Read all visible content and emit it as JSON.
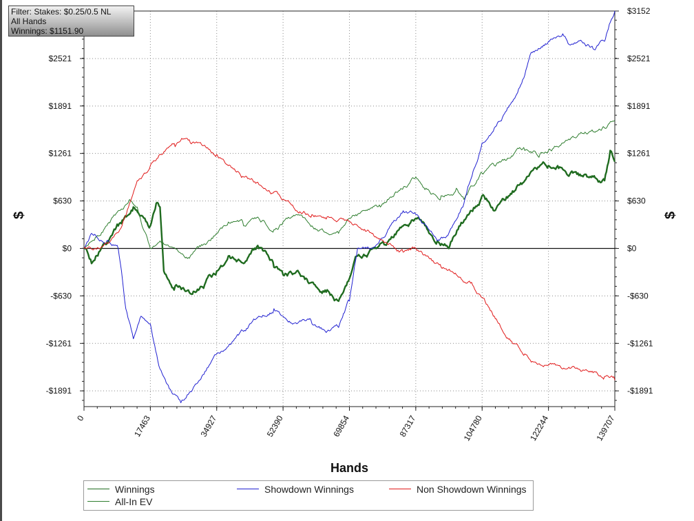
{
  "filter_box": {
    "lines": [
      "Filter: Stakes: $0.25/0.5 NL",
      "All Hands",
      "Winnings: $1151.90"
    ]
  },
  "chart_data": {
    "type": "line",
    "xlabel": "Hands",
    "ylabel": "$",
    "xlim": [
      0,
      139707
    ],
    "ylim": [
      -2100,
      3152
    ],
    "x_ticks": [
      0,
      17463,
      34927,
      52390,
      69854,
      87317,
      104780,
      122244,
      139707
    ],
    "y_ticks": [
      3152,
      2521,
      1891,
      1261,
      630,
      0,
      -630,
      -1261,
      -1891
    ],
    "y_tick_labels": [
      "$3152",
      "$2521",
      "$1891",
      "$1261",
      "$630",
      "$0",
      "-$630",
      "-$1261",
      "-$1891"
    ],
    "grid": true,
    "legend_position": "bottom",
    "series": [
      {
        "name": "Winnings",
        "color": "#1f6b1f",
        "style": "thick",
        "x": [
          0,
          2000,
          5000,
          9000,
          13000,
          16000,
          17463,
          19000,
          20000,
          21000,
          24000,
          28000,
          32000,
          34927,
          38000,
          42000,
          46000,
          50000,
          52390,
          56000,
          60000,
          64000,
          67000,
          69854,
          72000,
          75000,
          79000,
          84000,
          87317,
          90000,
          93000,
          96000,
          99000,
          102000,
          104780,
          108000,
          112000,
          116000,
          120000,
          122244,
          126000,
          130000,
          134000,
          137000,
          138500,
          139707
        ],
        "values": [
          0,
          -200,
          50,
          300,
          550,
          400,
          300,
          600,
          550,
          -300,
          -500,
          -600,
          -450,
          -300,
          -100,
          -200,
          0,
          -250,
          -350,
          -300,
          -450,
          -550,
          -700,
          -400,
          -100,
          -50,
          50,
          300,
          400,
          300,
          100,
          0,
          300,
          500,
          700,
          500,
          700,
          900,
          1100,
          1100,
          1050,
          1000,
          950,
          900,
          1300,
          1152
        ]
      },
      {
        "name": "All-In EV",
        "color": "#2e7d2e",
        "style": "thin",
        "x": [
          0,
          3000,
          6000,
          9000,
          12000,
          14000,
          17463,
          20000,
          24000,
          28000,
          32000,
          34927,
          38000,
          42000,
          46000,
          50000,
          52390,
          56000,
          60000,
          64000,
          67000,
          69854,
          74000,
          78000,
          82000,
          86000,
          87317,
          90000,
          94000,
          98000,
          100000,
          104780,
          108000,
          112000,
          116000,
          120000,
          122244,
          126000,
          130000,
          134000,
          138000,
          139707
        ],
        "values": [
          0,
          150,
          300,
          500,
          650,
          550,
          0,
          100,
          0,
          -100,
          50,
          200,
          350,
          300,
          400,
          250,
          350,
          450,
          300,
          200,
          200,
          400,
          500,
          550,
          750,
          900,
          950,
          800,
          700,
          800,
          650,
          1000,
          1100,
          1200,
          1300,
          1250,
          1300,
          1400,
          1500,
          1550,
          1650,
          1700
        ]
      },
      {
        "name": "Showdown Winnings",
        "color": "#1f1fd0",
        "style": "thin",
        "x": [
          0,
          2000,
          6000,
          9000,
          11000,
          13000,
          15000,
          17463,
          20000,
          23000,
          25500,
          28000,
          31000,
          34927,
          38000,
          42000,
          46000,
          50000,
          52390,
          56000,
          60000,
          64000,
          67000,
          69854,
          72000,
          76000,
          80000,
          84000,
          87317,
          90000,
          93000,
          96000,
          100000,
          104780,
          108000,
          112000,
          116000,
          118000,
          122244,
          126000,
          128000,
          131000,
          134000,
          137000,
          138500,
          139707
        ],
        "values": [
          0,
          200,
          100,
          0,
          -800,
          -1200,
          -900,
          -1000,
          -1600,
          -1900,
          -2050,
          -1900,
          -1700,
          -1400,
          -1300,
          -1100,
          -900,
          -800,
          -900,
          -1000,
          -1000,
          -1100,
          -1050,
          -700,
          0,
          0,
          250,
          500,
          450,
          300,
          100,
          200,
          600,
          1400,
          1600,
          1900,
          2300,
          2600,
          2750,
          2850,
          2700,
          2750,
          2650,
          2750,
          3000,
          3152
        ]
      },
      {
        "name": "Non Showdown Winnings",
        "color": "#e01818",
        "style": "thin",
        "x": [
          0,
          3000,
          7000,
          10000,
          12000,
          14000,
          17463,
          20000,
          24000,
          26000,
          28000,
          32000,
          34927,
          38000,
          42000,
          46000,
          50000,
          52390,
          56000,
          60000,
          64000,
          67000,
          69854,
          72000,
          76000,
          80000,
          84000,
          87317,
          90000,
          94000,
          98000,
          102000,
          104780,
          108000,
          112000,
          116000,
          118000,
          122244,
          126000,
          130000,
          134000,
          137000,
          139707
        ],
        "values": [
          0,
          0,
          100,
          300,
          600,
          900,
          1100,
          1250,
          1350,
          1450,
          1400,
          1350,
          1250,
          1100,
          950,
          850,
          750,
          650,
          500,
          450,
          420,
          380,
          350,
          300,
          200,
          50,
          -50,
          0,
          -100,
          -250,
          -350,
          -450,
          -650,
          -900,
          -1200,
          -1400,
          -1500,
          -1550,
          -1600,
          -1600,
          -1650,
          -1700,
          -1750
        ]
      }
    ]
  },
  "legend": {
    "items": [
      {
        "label": "Winnings",
        "color": "#1f6b1f"
      },
      {
        "label": "Showdown Winnings",
        "color": "#1f1fd0"
      },
      {
        "label": "Non Showdown Winnings",
        "color": "#e01818"
      },
      {
        "label": "All-In EV",
        "color": "#2e7d2e"
      }
    ]
  }
}
